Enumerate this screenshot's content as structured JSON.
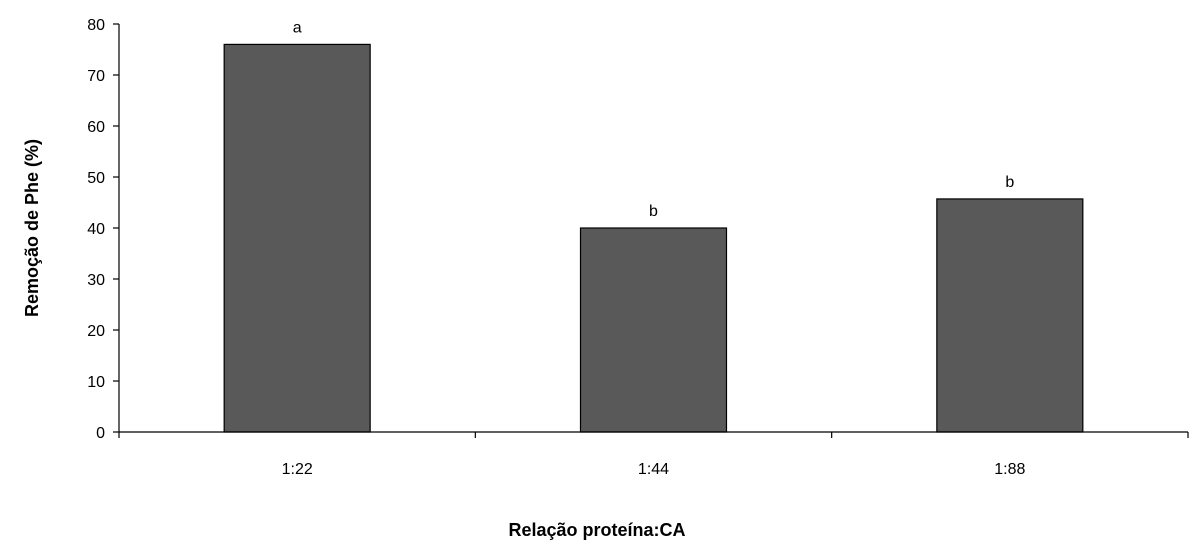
{
  "chart_data": {
    "type": "bar",
    "title": "",
    "xlabel": "Relação proteína:CA",
    "ylabel": "Remoção de Phe (%)",
    "categories": [
      "1:22",
      "1:44",
      "1:88"
    ],
    "values": [
      76,
      40,
      45.7
    ],
    "data_labels": [
      "a",
      "b",
      "b"
    ],
    "ylim": [
      0,
      80
    ],
    "yticks": [
      0,
      10,
      20,
      30,
      40,
      50,
      60,
      70,
      80
    ],
    "grid": false,
    "legend": "none",
    "bar_color": "#595959",
    "bar_edge_color": "#000000"
  }
}
